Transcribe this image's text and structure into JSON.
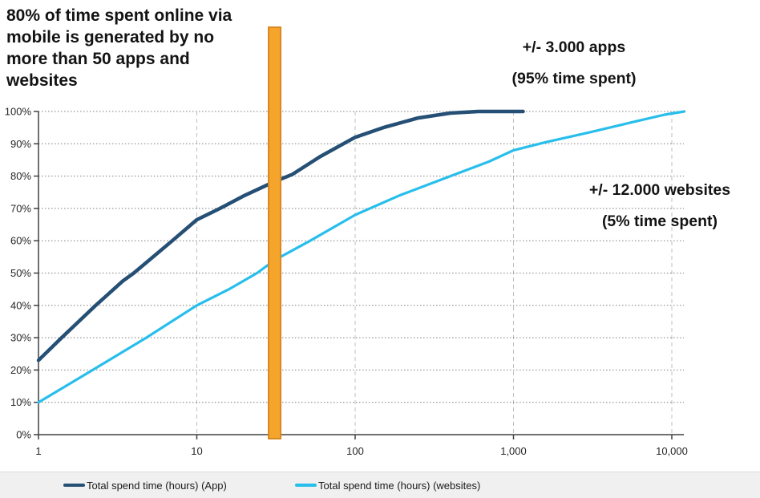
{
  "title": {
    "text": "80% of time spent online via\nmobile is generated by no\nmore than 50 apps and\nwebsites"
  },
  "annotations": {
    "apps": {
      "text": "+/- 3.000 apps\n(95% time spent)"
    },
    "websites": {
      "text": "+/- 12.000 websites\n(5% time spent)"
    }
  },
  "legend": {
    "items": [
      {
        "label": "Total spend time (hours) (App)",
        "color": "#254F74"
      },
      {
        "label": "Total spend time (hours) (websites)",
        "color": "#28BEEC"
      }
    ]
  },
  "chart_data": {
    "type": "line",
    "x_scale": "log",
    "xlim": [
      1,
      12000
    ],
    "ylim": [
      0,
      100
    ],
    "grid": {
      "horizontal": "dotted",
      "vertical": "dashed-at-decades"
    },
    "x_ticks": [
      {
        "value": 1,
        "label": "1"
      },
      {
        "value": 10,
        "label": "10"
      },
      {
        "value": 100,
        "label": "100"
      },
      {
        "value": 1000,
        "label": "1,000"
      },
      {
        "value": 10000,
        "label": "10,000"
      }
    ],
    "y_ticks": [
      {
        "value": 0,
        "label": "0%"
      },
      {
        "value": 10,
        "label": "10%"
      },
      {
        "value": 20,
        "label": "20%"
      },
      {
        "value": 30,
        "label": "30%"
      },
      {
        "value": 40,
        "label": "40%"
      },
      {
        "value": 50,
        "label": "50%"
      },
      {
        "value": 60,
        "label": "60%"
      },
      {
        "value": 70,
        "label": "70%"
      },
      {
        "value": 80,
        "label": "80%"
      },
      {
        "value": 90,
        "label": "90%"
      },
      {
        "value": 100,
        "label": "100%"
      }
    ],
    "highlight_bar": {
      "x": 31,
      "fill": "#F5A42C",
      "border": "#D8881F"
    },
    "series": [
      {
        "name": "Total spend time (hours) (App)",
        "color": "#254F74",
        "stroke_width": 4.5,
        "points": [
          [
            1,
            23
          ],
          [
            1.4,
            30
          ],
          [
            2.3,
            40
          ],
          [
            3.4,
            47.5
          ],
          [
            4,
            50
          ],
          [
            7,
            60
          ],
          [
            10,
            66.5
          ],
          [
            14,
            70
          ],
          [
            20,
            74
          ],
          [
            30,
            78
          ],
          [
            40,
            80.5
          ],
          [
            60,
            86
          ],
          [
            100,
            92
          ],
          [
            150,
            95
          ],
          [
            250,
            98
          ],
          [
            400,
            99.5
          ],
          [
            600,
            100
          ],
          [
            1150,
            100
          ]
        ]
      },
      {
        "name": "Total spend time (hours) (websites)",
        "color": "#28BEEC",
        "stroke_width": 3.2,
        "points": [
          [
            1,
            10
          ],
          [
            2.2,
            20
          ],
          [
            4.8,
            30
          ],
          [
            10,
            40
          ],
          [
            16,
            45
          ],
          [
            24,
            50
          ],
          [
            31,
            54
          ],
          [
            52,
            60
          ],
          [
            100,
            68
          ],
          [
            190,
            74
          ],
          [
            400,
            80
          ],
          [
            700,
            84.5
          ],
          [
            1000,
            88
          ],
          [
            1600,
            90.5
          ],
          [
            3000,
            93.5
          ],
          [
            6000,
            97
          ],
          [
            9000,
            99
          ],
          [
            12000,
            100
          ]
        ]
      }
    ]
  }
}
